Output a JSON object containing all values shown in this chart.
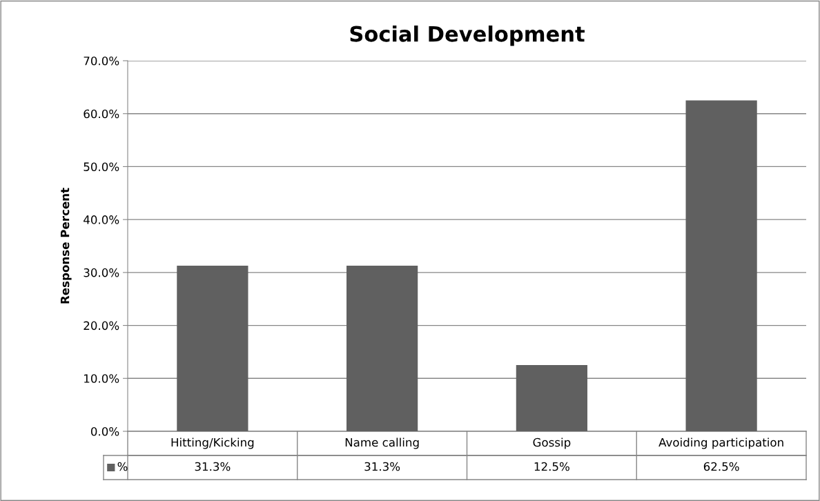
{
  "chart_data": {
    "type": "bar",
    "title": "Social Development",
    "ylabel": "Response Percent",
    "categories": [
      "Hitting/Kicking",
      "Name calling",
      "Gossip",
      "Avoiding participation"
    ],
    "series": [
      {
        "name": "%",
        "color": "#606060",
        "values": [
          31.3,
          31.3,
          12.5,
          62.5
        ]
      }
    ],
    "value_labels": [
      "31.3%",
      "31.3%",
      "12.5%",
      "62.5%"
    ],
    "ylim": [
      0,
      70
    ],
    "yticks": [
      {
        "value": 0,
        "label": "0.0%"
      },
      {
        "value": 10,
        "label": "10.0%"
      },
      {
        "value": 20,
        "label": "20.0%"
      },
      {
        "value": 30,
        "label": "30.0%"
      },
      {
        "value": 40,
        "label": "40.0%"
      },
      {
        "value": 50,
        "label": "50.0%"
      },
      {
        "value": 60,
        "label": "60.0%"
      },
      {
        "value": 70,
        "label": "70.0%"
      }
    ],
    "grid": "y",
    "legend": "bottom"
  }
}
